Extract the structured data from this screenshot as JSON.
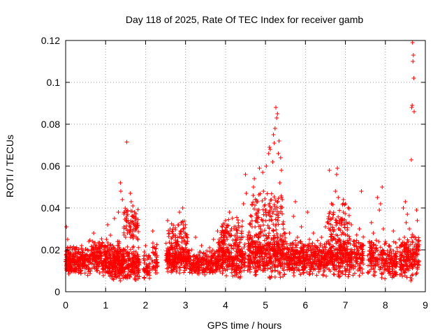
{
  "chart_data": {
    "type": "scatter",
    "title": "Day 118 of 2025, Rate Of TEC Index for receiver gamb",
    "xlabel": "GPS time / hours",
    "ylabel": "ROTI / TECUs",
    "xlim": [
      0,
      9
    ],
    "ylim": [
      0,
      0.12
    ],
    "grid": true,
    "x_ticks": [
      "0",
      "1",
      "2",
      "3",
      "4",
      "5",
      "6",
      "7",
      "8",
      "9"
    ],
    "y_ticks": [
      "0",
      "0.02",
      "0.04",
      "0.06",
      "0.08",
      "0.1",
      "0.12"
    ],
    "marker": "plus",
    "color": "#ff0000",
    "series": [
      {
        "name": "ROTI",
        "points": [
          [
            0.02,
            0.031
          ],
          [
            0.05,
            0.025
          ],
          [
            0.08,
            0.013
          ],
          [
            0.1,
            0.018
          ],
          [
            0.13,
            0.011
          ],
          [
            0.16,
            0.021
          ],
          [
            0.2,
            0.015
          ],
          [
            0.24,
            0.019
          ],
          [
            0.28,
            0.012
          ],
          [
            0.32,
            0.016
          ],
          [
            0.36,
            0.01
          ],
          [
            0.4,
            0.022
          ],
          [
            0.44,
            0.014
          ],
          [
            0.48,
            0.017
          ],
          [
            0.52,
            0.012
          ],
          [
            0.55,
            0.02
          ],
          [
            0.58,
            0.024
          ],
          [
            0.62,
            0.015
          ],
          [
            0.65,
            0.011
          ],
          [
            0.68,
            0.018
          ],
          [
            0.7,
            0.028
          ],
          [
            0.73,
            0.016
          ],
          [
            0.77,
            0.022
          ],
          [
            0.8,
            0.013
          ],
          [
            0.85,
            0.009
          ],
          [
            0.88,
            0.017
          ],
          [
            0.92,
            0.012
          ],
          [
            0.95,
            0.015
          ],
          [
            0.98,
            0.021
          ],
          [
            1.0,
            0.014
          ],
          [
            1.02,
            0.025
          ],
          [
            1.05,
            0.032
          ],
          [
            1.08,
            0.018
          ],
          [
            1.1,
            0.011
          ],
          [
            1.12,
            0.027
          ],
          [
            1.15,
            0.013
          ],
          [
            1.18,
            0.022
          ],
          [
            1.2,
            0.017
          ],
          [
            1.22,
            0.035
          ],
          [
            1.25,
            0.012
          ],
          [
            1.28,
            0.019
          ],
          [
            1.3,
            0.024
          ],
          [
            1.32,
            0.038
          ],
          [
            1.35,
            0.016
          ],
          [
            1.37,
            0.052
          ],
          [
            1.38,
            0.048
          ],
          [
            1.4,
            0.013
          ],
          [
            1.42,
            0.044
          ],
          [
            1.44,
            0.02
          ],
          [
            1.46,
            0.031
          ],
          [
            1.48,
            0.015
          ],
          [
            1.5,
            0.026
          ],
          [
            1.52,
            0.039
          ],
          [
            1.53,
            0.0715
          ],
          [
            1.55,
            0.018
          ],
          [
            1.57,
            0.033
          ],
          [
            1.6,
            0.028
          ],
          [
            1.62,
            0.047
          ],
          [
            1.64,
            0.043
          ],
          [
            1.66,
            0.036
          ],
          [
            1.68,
            0.041
          ],
          [
            1.7,
            0.03
          ],
          [
            1.72,
            0.038
          ],
          [
            1.74,
            0.034
          ],
          [
            1.76,
            0.019
          ],
          [
            1.78,
            0.012
          ],
          [
            1.8,
            0.016
          ],
          [
            1.82,
            0.011
          ],
          [
            1.97,
            0.019
          ],
          [
            2.0,
            0.022
          ],
          [
            2.02,
            0.013
          ],
          [
            2.05,
            0.009
          ],
          [
            2.08,
            0.016
          ],
          [
            2.1,
            0.011
          ],
          [
            2.18,
            0.029
          ],
          [
            2.2,
            0.012
          ],
          [
            2.23,
            0.018
          ],
          [
            2.25,
            0.009
          ],
          [
            2.28,
            0.014
          ],
          [
            2.55,
            0.034
          ],
          [
            2.6,
            0.018
          ],
          [
            2.65,
            0.023
          ],
          [
            2.7,
            0.013
          ],
          [
            2.75,
            0.026
          ],
          [
            2.8,
            0.016
          ],
          [
            2.85,
            0.038
          ],
          [
            2.88,
            0.02
          ],
          [
            2.9,
            0.033
          ],
          [
            2.93,
            0.04
          ],
          [
            2.96,
            0.015
          ],
          [
            3.0,
            0.032
          ],
          [
            3.05,
            0.024
          ],
          [
            3.1,
            0.014
          ],
          [
            3.15,
            0.02
          ],
          [
            3.2,
            0.017
          ],
          [
            3.25,
            0.026
          ],
          [
            3.3,
            0.012
          ],
          [
            3.35,
            0.019
          ],
          [
            3.4,
            0.022
          ],
          [
            3.45,
            0.015
          ],
          [
            3.5,
            0.018
          ],
          [
            3.55,
            0.011
          ],
          [
            3.6,
            0.021
          ],
          [
            3.65,
            0.016
          ],
          [
            3.7,
            0.025
          ],
          [
            3.75,
            0.013
          ],
          [
            3.8,
            0.029
          ],
          [
            3.85,
            0.018
          ],
          [
            3.9,
            0.024
          ],
          [
            3.95,
            0.014
          ],
          [
            4.0,
            0.034
          ],
          [
            4.05,
            0.02
          ],
          [
            4.1,
            0.038
          ],
          [
            4.15,
            0.027
          ],
          [
            4.2,
            0.016
          ],
          [
            4.25,
            0.031
          ],
          [
            4.3,
            0.022
          ],
          [
            4.35,
            0.012
          ],
          [
            4.4,
            0.028
          ],
          [
            4.45,
            0.042
          ],
          [
            4.5,
            0.056
          ],
          [
            4.52,
            0.047
          ],
          [
            4.55,
            0.025
          ],
          [
            4.6,
            0.015
          ],
          [
            4.65,
            0.036
          ],
          [
            4.7,
            0.05
          ],
          [
            4.72,
            0.054
          ],
          [
            4.75,
            0.021
          ],
          [
            4.8,
            0.043
          ],
          [
            4.85,
            0.059
          ],
          [
            4.88,
            0.03
          ],
          [
            4.9,
            0.018
          ],
          [
            4.93,
            0.057
          ],
          [
            4.95,
            0.048
          ],
          [
            5.0,
            0.038
          ],
          [
            5.02,
            0.06
          ],
          [
            5.05,
            0.022
          ],
          [
            5.08,
            0.066
          ],
          [
            5.1,
            0.069
          ],
          [
            5.12,
            0.068
          ],
          [
            5.15,
            0.04
          ],
          [
            5.18,
            0.062
          ],
          [
            5.2,
            0.075
          ],
          [
            5.22,
            0.071
          ],
          [
            5.24,
            0.078
          ],
          [
            5.26,
            0.088
          ],
          [
            5.28,
            0.083
          ],
          [
            5.3,
            0.085
          ],
          [
            5.32,
            0.066
          ],
          [
            5.34,
            0.072
          ],
          [
            5.36,
            0.052
          ],
          [
            5.38,
            0.064
          ],
          [
            5.4,
            0.058
          ],
          [
            5.42,
            0.044
          ],
          [
            5.45,
            0.03
          ],
          [
            5.5,
            0.024
          ],
          [
            5.55,
            0.015
          ],
          [
            5.6,
            0.028
          ],
          [
            5.65,
            0.02
          ],
          [
            5.7,
            0.036
          ],
          [
            5.75,
            0.043
          ],
          [
            5.8,
            0.026
          ],
          [
            5.85,
            0.018
          ],
          [
            5.9,
            0.031
          ],
          [
            5.95,
            0.022
          ],
          [
            6.0,
            0.015
          ],
          [
            6.05,
            0.038
          ],
          [
            6.1,
            0.025
          ],
          [
            6.15,
            0.018
          ],
          [
            6.2,
            0.028
          ],
          [
            6.25,
            0.013
          ],
          [
            6.3,
            0.021
          ],
          [
            6.35,
            0.017
          ],
          [
            6.4,
            0.026
          ],
          [
            6.45,
            0.02
          ],
          [
            6.5,
            0.031
          ],
          [
            6.55,
            0.033
          ],
          [
            6.6,
            0.058
          ],
          [
            6.65,
            0.042
          ],
          [
            6.7,
            0.037
          ],
          [
            6.75,
            0.048
          ],
          [
            6.78,
            0.056
          ],
          [
            6.8,
            0.059
          ],
          [
            6.82,
            0.045
          ],
          [
            6.85,
            0.03
          ],
          [
            6.9,
            0.022
          ],
          [
            6.95,
            0.044
          ],
          [
            7.0,
            0.042
          ],
          [
            7.05,
            0.027
          ],
          [
            7.1,
            0.018
          ],
          [
            7.15,
            0.032
          ],
          [
            7.2,
            0.024
          ],
          [
            7.25,
            0.016
          ],
          [
            7.3,
            0.02
          ],
          [
            7.35,
            0.03
          ],
          [
            7.4,
            0.048
          ],
          [
            7.45,
            0.022
          ],
          [
            7.6,
            0.024
          ],
          [
            7.65,
            0.033
          ],
          [
            7.7,
            0.028
          ],
          [
            7.75,
            0.019
          ],
          [
            7.8,
            0.045
          ],
          [
            7.85,
            0.039
          ],
          [
            7.88,
            0.042
          ],
          [
            7.92,
            0.05
          ],
          [
            7.95,
            0.03
          ],
          [
            8.0,
            0.018
          ],
          [
            8.05,
            0.012
          ],
          [
            8.1,
            0.022
          ],
          [
            8.15,
            0.016
          ],
          [
            8.2,
            0.029
          ],
          [
            8.25,
            0.013
          ],
          [
            8.35,
            0.025
          ],
          [
            8.4,
            0.018
          ],
          [
            8.45,
            0.04
          ],
          [
            8.5,
            0.043
          ],
          [
            8.52,
            0.033
          ],
          [
            8.55,
            0.037
          ],
          [
            8.58,
            0.024
          ],
          [
            8.6,
            0.03
          ],
          [
            8.62,
            0.018
          ],
          [
            8.65,
            0.063
          ],
          [
            8.66,
            0.088
          ],
          [
            8.67,
            0.089
          ],
          [
            8.68,
            0.119
          ],
          [
            8.69,
            0.11
          ],
          [
            8.7,
            0.113
          ],
          [
            8.71,
            0.102
          ],
          [
            8.72,
            0.086
          ],
          [
            8.74,
            0.026
          ],
          [
            8.76,
            0.018
          ],
          [
            8.78,
            0.039
          ],
          [
            8.8,
            0.034
          ],
          [
            8.82,
            0.02
          ]
        ],
        "bands": [
          {
            "x0": 0.0,
            "x1": 0.6,
            "ylo": 0.007,
            "yhi": 0.022,
            "n": 260
          },
          {
            "x0": 0.6,
            "x1": 0.9,
            "ylo": 0.008,
            "yhi": 0.026,
            "n": 110
          },
          {
            "x0": 0.9,
            "x1": 1.35,
            "ylo": 0.004,
            "yhi": 0.025,
            "n": 220
          },
          {
            "x0": 1.3,
            "x1": 1.85,
            "ylo": 0.005,
            "yhi": 0.022,
            "n": 240
          },
          {
            "x0": 1.45,
            "x1": 1.82,
            "ylo": 0.022,
            "yhi": 0.042,
            "n": 70
          },
          {
            "x0": 1.95,
            "x1": 2.12,
            "ylo": 0.005,
            "yhi": 0.02,
            "n": 45
          },
          {
            "x0": 2.15,
            "x1": 2.3,
            "ylo": 0.005,
            "yhi": 0.025,
            "n": 40
          },
          {
            "x0": 2.5,
            "x1": 3.1,
            "ylo": 0.008,
            "yhi": 0.024,
            "n": 230
          },
          {
            "x0": 2.55,
            "x1": 3.05,
            "ylo": 0.02,
            "yhi": 0.036,
            "n": 60
          },
          {
            "x0": 3.1,
            "x1": 3.8,
            "ylo": 0.007,
            "yhi": 0.02,
            "n": 220
          },
          {
            "x0": 3.8,
            "x1": 4.5,
            "ylo": 0.006,
            "yhi": 0.026,
            "n": 260
          },
          {
            "x0": 3.85,
            "x1": 4.45,
            "ylo": 0.02,
            "yhi": 0.036,
            "n": 70
          },
          {
            "x0": 4.55,
            "x1": 5.5,
            "ylo": 0.006,
            "yhi": 0.03,
            "n": 420
          },
          {
            "x0": 4.6,
            "x1": 5.45,
            "ylo": 0.025,
            "yhi": 0.05,
            "n": 110
          },
          {
            "x0": 5.5,
            "x1": 6.5,
            "ylo": 0.007,
            "yhi": 0.025,
            "n": 380
          },
          {
            "x0": 6.5,
            "x1": 7.45,
            "ylo": 0.006,
            "yhi": 0.028,
            "n": 360
          },
          {
            "x0": 6.55,
            "x1": 7.1,
            "ylo": 0.022,
            "yhi": 0.044,
            "n": 70
          },
          {
            "x0": 7.55,
            "x1": 8.3,
            "ylo": 0.006,
            "yhi": 0.026,
            "n": 230
          },
          {
            "x0": 8.35,
            "x1": 8.85,
            "ylo": 0.005,
            "yhi": 0.028,
            "n": 200
          }
        ]
      }
    ]
  }
}
